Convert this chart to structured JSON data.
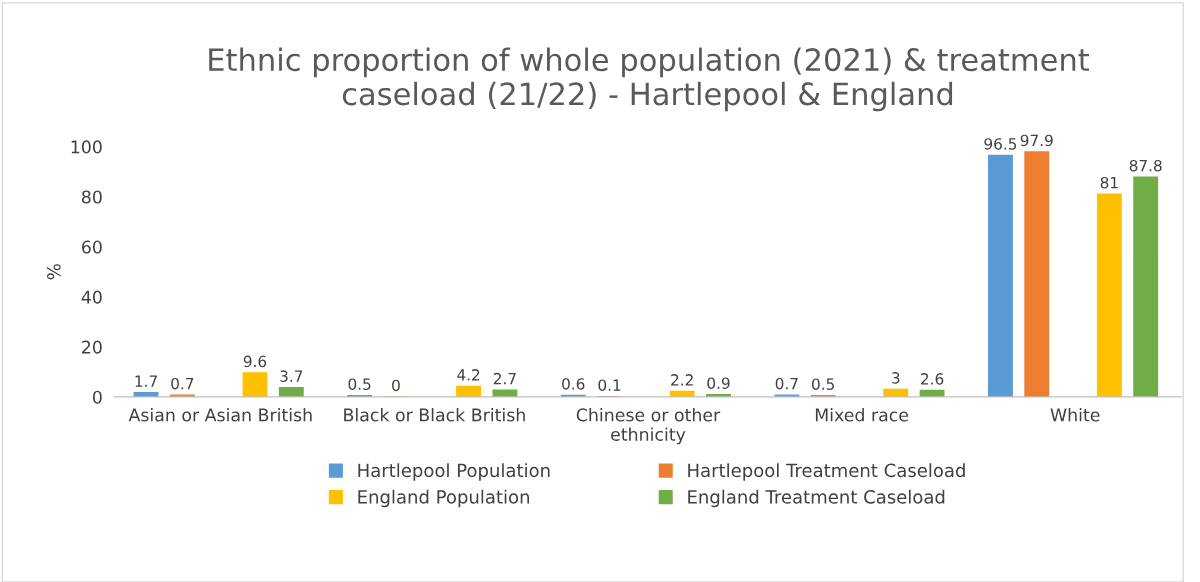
{
  "chart_data": {
    "type": "bar",
    "title": "Ethnic proportion of whole population (2021) & treatment\ncaseload (21/22) - Hartlepool & England",
    "ylabel": "%",
    "categories": [
      "Asian or Asian British",
      "Black or Black British",
      "Chinese or other\nethnicity",
      "Mixed race",
      "White"
    ],
    "series": [
      {
        "name": "Hartlepool Population",
        "color": "#5b9bd5",
        "values": [
          1.7,
          0.5,
          0.6,
          0.7,
          96.5
        ]
      },
      {
        "name": "Hartlepool Treatment Caseload",
        "color": "#ed7d31",
        "values": [
          0.7,
          0,
          0.1,
          0.5,
          97.9
        ]
      },
      {
        "name": "England Population",
        "color": "#ffc000",
        "values": [
          9.6,
          4.2,
          2.2,
          3,
          81
        ]
      },
      {
        "name": "England Treatment Caseload",
        "color": "#70ad47",
        "values": [
          3.7,
          2.7,
          0.9,
          2.6,
          87.8
        ]
      }
    ],
    "ylim": [
      0,
      100
    ],
    "yticks": [
      0,
      20,
      40,
      60,
      80,
      100
    ],
    "grid": false,
    "legend": "bottom",
    "data_labels": true
  }
}
